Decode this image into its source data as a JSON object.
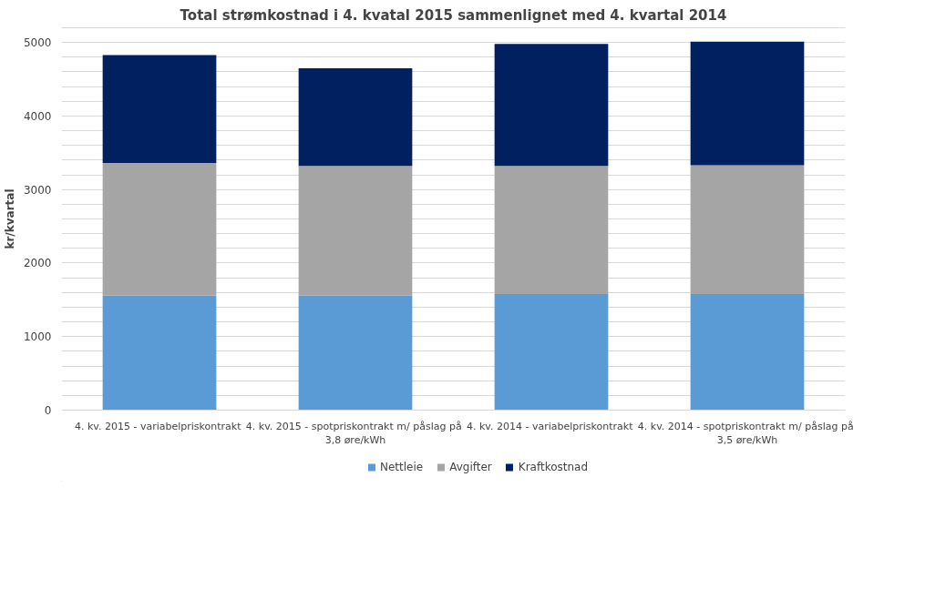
{
  "chart_data": {
    "type": "bar",
    "stacked": true,
    "title": "Total strømkostnad i 4. kvatal 2015 sammenlignet med 4. kvartal 2014",
    "ylabel": "kr/kvartal",
    "categories": [
      "4. kv. 2015  - variabelpriskontrakt",
      "4. kv. 2015  - spotpriskontrakt m/ påslag på 3,8 øre/kWh",
      "4. kv. 2014  - variabelpriskontrakt",
      "4. kv. 2014  - spotpriskontrakt m/ påslag på 3,5 øre/kWh"
    ],
    "series": [
      {
        "name": "Nettleie",
        "color": "#5b9bd5",
        "values": [
          1560,
          1560,
          1580,
          1580
        ]
      },
      {
        "name": "Avgifter",
        "color": "#a5a5a5",
        "values": [
          1800,
          1760,
          1740,
          1750
        ]
      },
      {
        "name": "Kraftkostnad",
        "color": "#002060",
        "values": [
          1470,
          1330,
          1660,
          1680
        ]
      }
    ],
    "ylim": [
      0,
      5200
    ],
    "yticks": [
      0,
      {
        "value": 200,
        "label": null
      },
      {
        "value": 400,
        "label": null
      },
      {
        "value": 600,
        "label": null
      },
      {
        "value": 800,
        "label": null
      },
      1000,
      {
        "value": 1200,
        "label": null
      },
      {
        "value": 1400,
        "label": null
      },
      {
        "value": 1600,
        "label": null
      },
      {
        "value": 1800,
        "label": null
      },
      2000,
      {
        "value": 2200,
        "label": null
      },
      {
        "value": 2400,
        "label": null
      },
      {
        "value": 2600,
        "label": null
      },
      {
        "value": 2800,
        "label": null
      },
      3000,
      {
        "value": 3200,
        "label": null
      },
      {
        "value": 3400,
        "label": null
      },
      {
        "value": 3600,
        "label": null
      },
      {
        "value": 3800,
        "label": null
      },
      4000,
      {
        "value": 4200,
        "label": null
      },
      {
        "value": 4400,
        "label": null
      },
      {
        "value": 4600,
        "label": null
      },
      {
        "value": 4800,
        "label": null
      },
      5000
    ],
    "grid": "y",
    "legend": "bottom"
  }
}
